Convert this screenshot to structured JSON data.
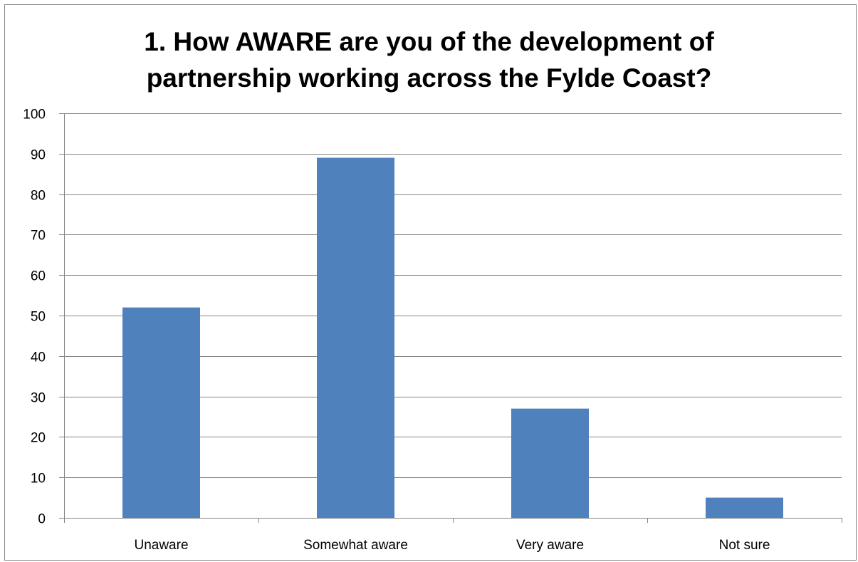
{
  "chart_data": {
    "type": "bar",
    "title_lines": [
      "1. How AWARE are you of the development of",
      "partnership working across the Fylde Coast?"
    ],
    "categories": [
      "Unaware",
      "Somewhat aware",
      "Very aware",
      "Not sure"
    ],
    "values": [
      52,
      89,
      27,
      5
    ],
    "ylim": [
      0,
      100
    ],
    "yticks": [
      0,
      10,
      20,
      30,
      40,
      50,
      60,
      70,
      80,
      90,
      100
    ],
    "grid": true,
    "legend": "none",
    "colors": {
      "bar": "#4f81bd",
      "gridline": "#868686",
      "axis": "#868686"
    }
  }
}
